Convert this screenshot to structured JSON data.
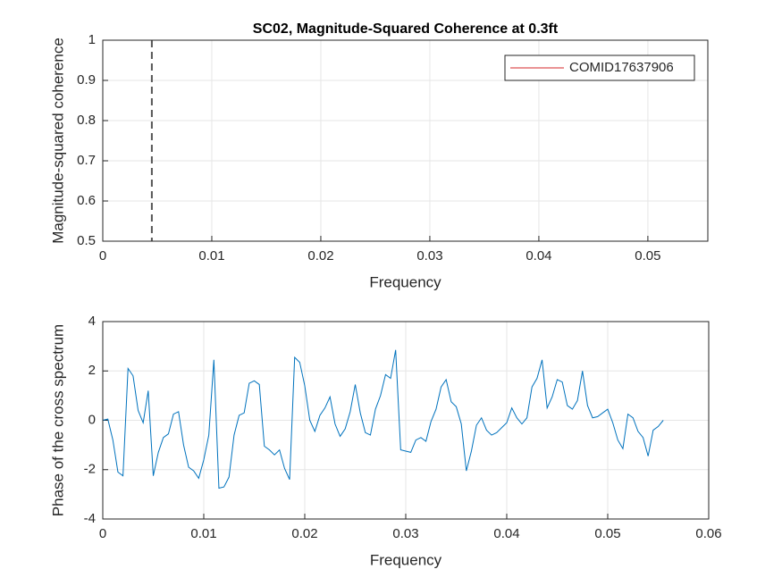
{
  "chart_data": [
    {
      "type": "line",
      "title": "SC02, Magnitude-Squared Coherence at 0.3ft",
      "xlabel": "Frequency",
      "ylabel": "Magnitude-squared coherence",
      "xlim": [
        0,
        0.0555
      ],
      "ylim": [
        0.5,
        1
      ],
      "xticks": [
        0,
        0.01,
        0.02,
        0.03,
        0.04,
        0.05
      ],
      "yticks": [
        0.5,
        0.6,
        0.7,
        0.8,
        0.9,
        1
      ],
      "grid": true,
      "legend": "northeast",
      "reference_x": 0.0045,
      "series": [
        {
          "name": "COMID17637906",
          "color": "#d62728"
        }
      ]
    },
    {
      "type": "line",
      "xlabel": "Frequency",
      "ylabel": "Phase of the cross spectrum",
      "xlim": [
        0,
        0.06
      ],
      "ylim": [
        -4,
        4
      ],
      "xticks": [
        0,
        0.01,
        0.02,
        0.03,
        0.04,
        0.05,
        0.06
      ],
      "yticks": [
        -4,
        -2,
        0,
        2,
        4
      ],
      "grid": true,
      "x": [
        0,
        0.0005,
        0.001,
        0.0015,
        0.002,
        0.0025,
        0.003,
        0.0035,
        0.004,
        0.0045,
        0.005,
        0.0055,
        0.006,
        0.0065,
        0.007,
        0.0075,
        0.008,
        0.0085,
        0.009,
        0.0095,
        0.01,
        0.0105,
        0.011,
        0.0115,
        0.012,
        0.0125,
        0.013,
        0.0135,
        0.014,
        0.0145,
        0.015,
        0.0155,
        0.016,
        0.0165,
        0.017,
        0.0175,
        0.018,
        0.0185,
        0.019,
        0.0195,
        0.02,
        0.0205,
        0.021,
        0.0215,
        0.022,
        0.0225,
        0.023,
        0.0235,
        0.024,
        0.0245,
        0.025,
        0.0255,
        0.026,
        0.0265,
        0.027,
        0.0275,
        0.028,
        0.0285,
        0.029,
        0.0295,
        0.03,
        0.0305,
        0.031,
        0.0315,
        0.032,
        0.0325,
        0.033,
        0.0335,
        0.034,
        0.0345,
        0.035,
        0.0355,
        0.036,
        0.0365,
        0.037,
        0.0375,
        0.038,
        0.0385,
        0.039,
        0.0395,
        0.04,
        0.0405,
        0.041,
        0.0415,
        0.042,
        0.0425,
        0.043,
        0.0435,
        0.044,
        0.0445,
        0.045,
        0.0455,
        0.046,
        0.0465,
        0.047,
        0.0475,
        0.048,
        0.0485,
        0.049,
        0.0495,
        0.05,
        0.0505,
        0.051,
        0.0515,
        0.052,
        0.0525,
        0.053,
        0.0535,
        0.054,
        0.0545,
        0.055,
        0.0555
      ],
      "series": [
        {
          "color": "#0072bd",
          "values": [
            0,
            0.05,
            -0.8,
            -2.1,
            -2.25,
            2.1,
            1.8,
            0.4,
            -0.1,
            1.2,
            -2.25,
            -1.3,
            -0.7,
            -0.55,
            0.25,
            0.35,
            -1.0,
            -1.9,
            -2.05,
            -2.35,
            -1.6,
            -0.6,
            2.45,
            -2.75,
            -2.7,
            -2.3,
            -0.6,
            0.2,
            0.3,
            1.5,
            1.6,
            1.45,
            -1.05,
            -1.2,
            -1.4,
            -1.2,
            -1.95,
            -2.4,
            2.55,
            2.35,
            1.4,
            0,
            -0.45,
            0.2,
            0.5,
            0.95,
            -0.15,
            -0.65,
            -0.35,
            0.35,
            1.45,
            0.3,
            -0.5,
            -0.6,
            0.45,
            1.0,
            1.85,
            1.7,
            2.85,
            -1.2,
            -1.25,
            -1.3,
            -0.8,
            -0.7,
            -0.85,
            -0.05,
            0.45,
            1.35,
            1.65,
            0.75,
            0.55,
            -0.15,
            -2.05,
            -1.25,
            -0.2,
            0.1,
            -0.4,
            -0.6,
            -0.5,
            -0.3,
            -0.1,
            0.5,
            0.1,
            -0.15,
            0.1,
            1.35,
            1.7,
            2.45,
            0.5,
            0.95,
            1.65,
            1.55,
            0.6,
            0.45,
            0.8,
            2.0,
            0.6,
            0.1,
            0.15,
            0.3,
            0.45,
            -0.1,
            -0.8,
            -1.15,
            0.25,
            0.1,
            -0.45,
            -0.7,
            -1.45,
            -0.4,
            -0.25,
            0
          ]
        }
      ]
    }
  ]
}
